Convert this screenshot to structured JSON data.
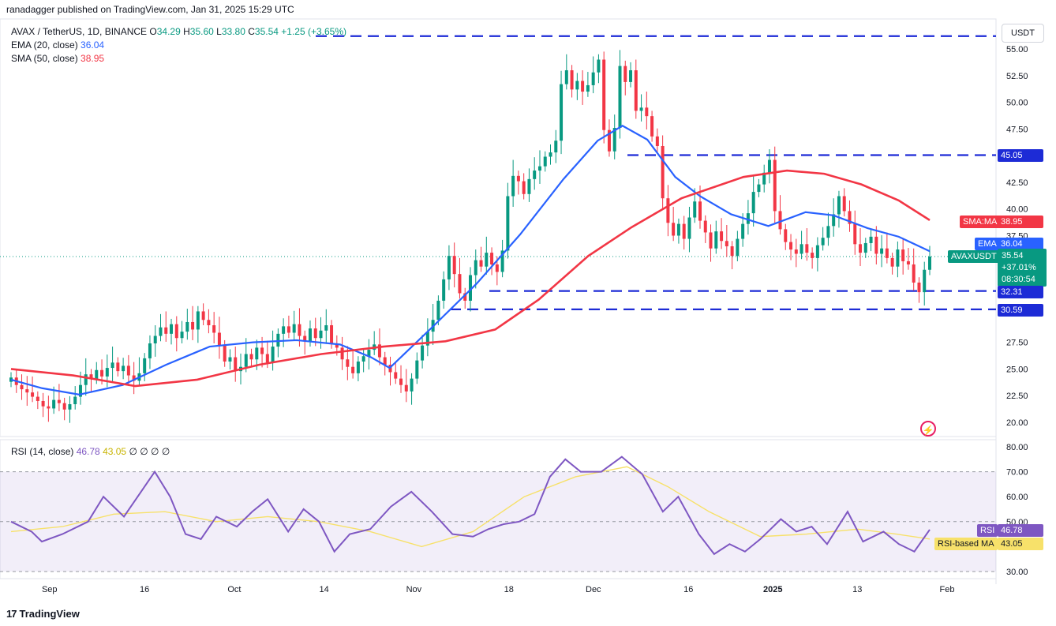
{
  "publisher_line": "ranadagger published on TradingView.com, Jan 31, 2025 15:29 UTC",
  "legend": {
    "symbol": "AVAX / TetherUS, 1D, BINANCE",
    "open_label": "O",
    "open": "34.29",
    "high_label": "H",
    "high": "35.60",
    "low_label": "L",
    "low": "33.80",
    "close_label": "C",
    "close": "35.54",
    "change": "+1.25 (+3.65%)",
    "ema_label": "EMA (20, close)",
    "ema_value": "36.04",
    "sma_label": "SMA (50, close)",
    "sma_value": "38.95"
  },
  "rsi_legend": {
    "label": "RSI (14, close)",
    "rsi_value": "46.78",
    "rsi_ma_value": "43.05",
    "extras": "∅ ∅ ∅ ∅"
  },
  "currency_button": "USDT",
  "footer_brand": "TradingView",
  "footer_logo": "17",
  "colors": {
    "up": "#089981",
    "down": "#f23645",
    "ema": "#2962ff",
    "sma": "#f23645",
    "level": "#1d2bd6",
    "rsi": "#7e57c2",
    "rsi_ma": "#f7e16a",
    "rsi_band": "rgba(126,87,194,0.1)"
  },
  "price_tags": {
    "sma": {
      "label": "SMA:MA",
      "value": "38.95"
    },
    "ema": {
      "label": "EMA",
      "value": "36.04"
    },
    "last": {
      "symbol": "AVAXUSDT",
      "value": "35.54",
      "change": "+37.01%",
      "countdown": "08:30:54"
    },
    "level_45": "45.05",
    "level_3231": "32.31",
    "level_3059": "30.59"
  },
  "rsi_tags": {
    "rsi_label": "RSI",
    "rsi_value": "46.78",
    "ma_label": "RSI-based MA",
    "ma_value": "43.05"
  },
  "icons": {
    "flash": "flash-icon"
  },
  "chart_data": [
    {
      "type": "candlestick",
      "title": "AVAX / TetherUS, 1D, BINANCE",
      "y_axis_ticks": [
        "55.00",
        "52.50",
        "50.00",
        "47.50",
        "42.50",
        "40.00",
        "37.50",
        "27.50",
        "25.00",
        "22.50",
        "20.00"
      ],
      "x_axis_ticks": [
        "Sep",
        "16",
        "Oct",
        "14",
        "Nov",
        "18",
        "Dec",
        "16",
        "2025",
        "13",
        "Feb"
      ],
      "ylim": [
        18.5,
        56.5
      ],
      "horizontal_levels": [
        56.2,
        45.05,
        32.31,
        30.59
      ],
      "close_series": [
        24.2,
        23.5,
        23.1,
        22.8,
        22.4,
        22.0,
        21.5,
        21.3,
        22.1,
        21.8,
        21.2,
        21.7,
        22.4,
        23.5,
        24.5,
        24.1,
        24.9,
        24.3,
        25.1,
        25.6,
        24.8,
        25.3,
        24.4,
        23.9,
        24.6,
        26.0,
        27.4,
        28.1,
        28.9,
        28.3,
        29.2,
        27.9,
        28.5,
        29.4,
        28.7,
        30.4,
        29.6,
        29.1,
        28.4,
        27.2,
        25.7,
        26.1,
        24.8,
        25.2,
        26.4,
        25.9,
        27.0,
        26.4,
        25.6,
        27.1,
        28.3,
        29.0,
        28.4,
        29.2,
        28.1,
        27.6,
        28.8,
        27.9,
        28.6,
        29.1,
        27.4,
        27.0,
        25.9,
        25.2,
        24.6,
        25.7,
        26.2,
        26.8,
        27.3,
        26.1,
        25.4,
        24.7,
        24.1,
        23.5,
        22.9,
        24.1,
        25.8,
        27.2,
        28.5,
        29.6,
        31.4,
        33.4,
        35.6,
        33.9,
        32.1,
        31.4,
        33.8,
        35.2,
        34.6,
        35.9,
        34.8,
        34.1,
        36.1,
        41.2,
        43.1,
        42.6,
        41.4,
        42.8,
        43.6,
        44.0,
        44.9,
        45.3,
        46.4,
        51.7,
        53.0,
        51.2,
        52.0,
        51.0,
        51.6,
        52.8,
        54.0,
        47.4,
        45.4,
        47.6,
        53.4,
        51.9,
        53.0,
        49.2,
        49.5,
        48.7,
        46.8,
        45.9,
        41.0,
        38.7,
        37.5,
        38.6,
        37.2,
        39.2,
        40.7,
        38.9,
        37.8,
        36.3,
        37.9,
        37.0,
        36.5,
        35.6,
        37.2,
        38.6,
        39.6,
        41.6,
        42.3,
        43.4,
        44.6,
        39.8,
        38.1,
        36.9,
        36.2,
        35.8,
        36.7,
        35.9,
        35.4,
        36.6,
        37.3,
        38.4,
        39.5,
        41.2,
        39.8,
        38.6,
        36.7,
        35.9,
        36.8,
        37.4,
        35.8,
        36.3,
        35.4,
        34.6,
        36.2,
        35.1,
        34.8,
        33.1,
        32.2,
        34.3,
        35.54
      ],
      "ema20_points": [
        [
          0,
          24.0
        ],
        [
          10,
          23.2
        ],
        [
          22,
          22.6
        ],
        [
          36,
          23.5
        ],
        [
          50,
          25.4
        ],
        [
          64,
          27.1
        ],
        [
          78,
          27.5
        ],
        [
          92,
          27.7
        ],
        [
          106,
          27.3
        ],
        [
          116,
          26.1
        ],
        [
          122,
          25.1
        ],
        [
          136,
          29.0
        ],
        [
          150,
          33.0
        ],
        [
          164,
          37.6
        ],
        [
          178,
          42.8
        ],
        [
          189,
          46.4
        ],
        [
          197,
          47.8
        ],
        [
          205,
          46.5
        ],
        [
          214,
          43.0
        ],
        [
          222,
          41.2
        ],
        [
          232,
          39.5
        ],
        [
          244,
          38.4
        ],
        [
          256,
          39.7
        ],
        [
          265,
          39.4
        ],
        [
          276,
          38.2
        ],
        [
          286,
          37.4
        ],
        [
          296,
          36.04
        ]
      ],
      "sma50_points": [
        [
          0,
          25.0
        ],
        [
          20,
          24.4
        ],
        [
          40,
          23.4
        ],
        [
          60,
          24.0
        ],
        [
          80,
          25.4
        ],
        [
          100,
          26.4
        ],
        [
          120,
          27.1
        ],
        [
          140,
          27.6
        ],
        [
          156,
          28.7
        ],
        [
          170,
          31.5
        ],
        [
          186,
          35.6
        ],
        [
          200,
          38.3
        ],
        [
          216,
          41.0
        ],
        [
          236,
          43.0
        ],
        [
          250,
          43.6
        ],
        [
          262,
          43.3
        ],
        [
          274,
          42.3
        ],
        [
          286,
          40.8
        ],
        [
          296,
          38.95
        ]
      ],
      "last_close": 35.54,
      "ema20_last": 36.04,
      "sma50_last": 38.95
    },
    {
      "type": "line",
      "title": "RSI (14, close)",
      "y_axis_ticks": [
        "80.00",
        "70.00",
        "60.00",
        "50.00",
        "30.00"
      ],
      "ylim": [
        28,
        82
      ],
      "bands": [
        70,
        50,
        30
      ],
      "rsi_points": [
        [
          0,
          50
        ],
        [
          8,
          46
        ],
        [
          12,
          42
        ],
        [
          20,
          45
        ],
        [
          30,
          50
        ],
        [
          36,
          60
        ],
        [
          44,
          52
        ],
        [
          50,
          61
        ],
        [
          56,
          70
        ],
        [
          62,
          60
        ],
        [
          68,
          45
        ],
        [
          74,
          43
        ],
        [
          80,
          52
        ],
        [
          88,
          48
        ],
        [
          94,
          54
        ],
        [
          100,
          59
        ],
        [
          108,
          46
        ],
        [
          114,
          55
        ],
        [
          120,
          50
        ],
        [
          126,
          38
        ],
        [
          132,
          45
        ],
        [
          140,
          47
        ],
        [
          148,
          56
        ],
        [
          156,
          62
        ],
        [
          164,
          54
        ],
        [
          172,
          45
        ],
        [
          180,
          44
        ],
        [
          186,
          47
        ],
        [
          192,
          49
        ],
        [
          198,
          50
        ],
        [
          204,
          53
        ],
        [
          210,
          68
        ],
        [
          216,
          75
        ],
        [
          222,
          70
        ],
        [
          230,
          70
        ],
        [
          238,
          76
        ],
        [
          246,
          69
        ],
        [
          254,
          54
        ],
        [
          260,
          60
        ],
        [
          268,
          45
        ],
        [
          274,
          37
        ],
        [
          280,
          41
        ],
        [
          286,
          38
        ],
        [
          292,
          43
        ],
        [
          300,
          51
        ],
        [
          306,
          46
        ],
        [
          312,
          48
        ],
        [
          318,
          41
        ],
        [
          326,
          54
        ],
        [
          332,
          42
        ],
        [
          340,
          46
        ],
        [
          346,
          41
        ],
        [
          352,
          38
        ],
        [
          358,
          46.78
        ]
      ],
      "rsi_ma_points": [
        [
          0,
          46
        ],
        [
          20,
          48
        ],
        [
          40,
          53
        ],
        [
          60,
          54
        ],
        [
          80,
          50
        ],
        [
          100,
          52
        ],
        [
          120,
          50
        ],
        [
          140,
          46
        ],
        [
          160,
          40
        ],
        [
          180,
          46
        ],
        [
          200,
          60
        ],
        [
          220,
          68
        ],
        [
          240,
          72
        ],
        [
          256,
          64
        ],
        [
          272,
          54
        ],
        [
          292,
          44
        ],
        [
          310,
          45
        ],
        [
          330,
          47
        ],
        [
          345,
          45
        ],
        [
          358,
          43.05
        ]
      ],
      "rsi_last": 46.78,
      "rsi_ma_last": 43.05
    }
  ]
}
